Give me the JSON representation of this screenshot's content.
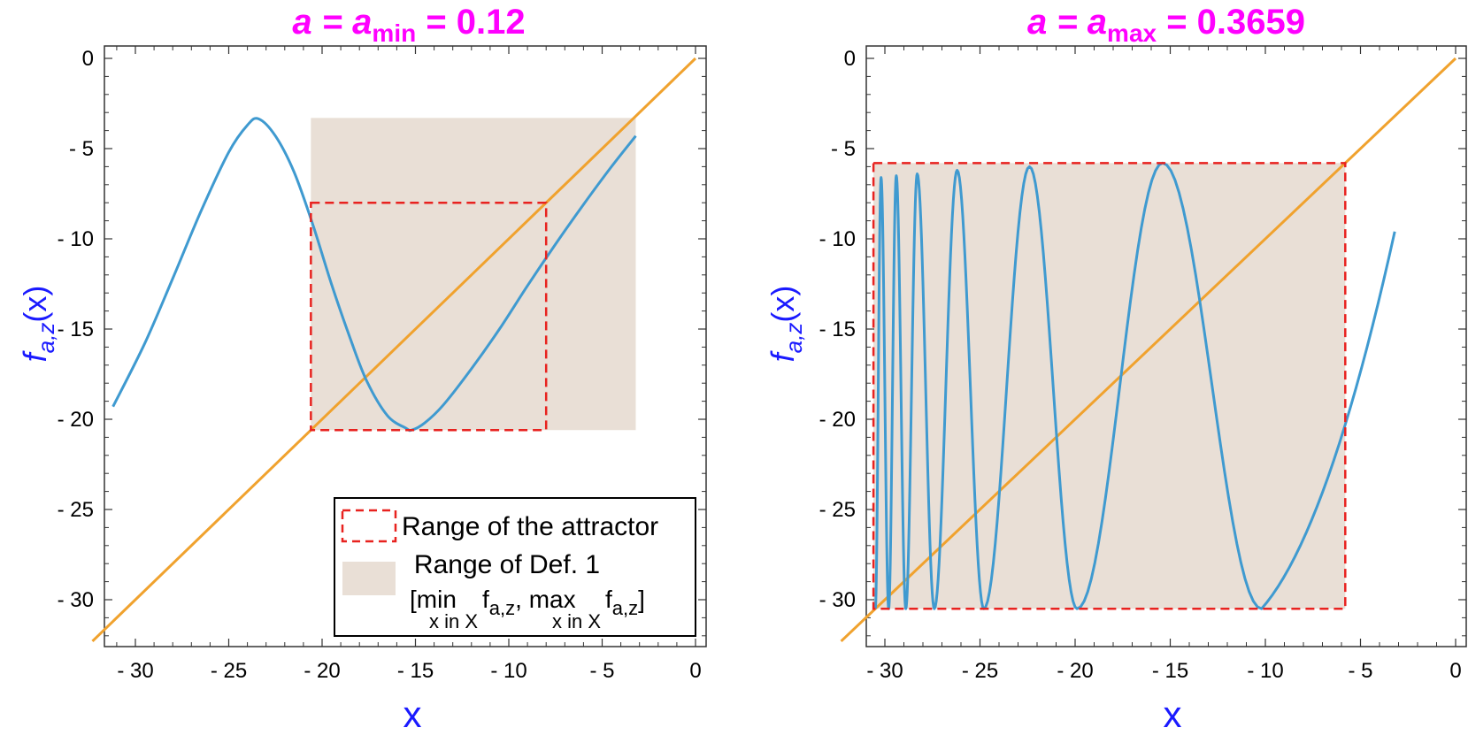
{
  "colors": {
    "title": "#ff00ff",
    "axis_label": "#1a1aff",
    "curve": "#3f9ad0",
    "diagonal": "#f0a22e",
    "attractor_box": "#e8221f",
    "def_region": "#e9dfd6"
  },
  "chart_data": [
    {
      "type": "line",
      "title": {
        "base": "a = a",
        "sub": "min",
        "tail": " = 0.12"
      },
      "xlabel": "x",
      "ylabel": {
        "f": "f",
        "sub": "a,z",
        "arg": "(x)"
      },
      "xlim": [
        -33,
        0.5
      ],
      "ylim": [
        -32.5,
        0.5
      ],
      "xticks": [
        -30,
        -25,
        -20,
        -15,
        -10,
        -5,
        0
      ],
      "xtick_labels": [
        "- 30",
        "- 25",
        "- 20",
        "- 15",
        "- 10",
        "- 5",
        "0"
      ],
      "yticks": [
        0,
        -5,
        -10,
        -15,
        -20,
        -25,
        -30
      ],
      "ytick_labels": [
        "0",
        "- 5",
        "- 10",
        "- 15",
        "- 20",
        "- 25",
        "- 30"
      ],
      "series": [
        {
          "kind": "curve",
          "x": [
            -31.2,
            -29.5,
            -28.0,
            -26.5,
            -25.0,
            -24.0,
            -23.4,
            -22.5,
            -21.5,
            -20.5,
            -19.5,
            -18.5,
            -17.6,
            -16.5,
            -15.5,
            -15.2,
            -14.5,
            -13.5,
            -12.0,
            -10.5,
            -9.0,
            -7.5,
            -6.0,
            -4.5,
            -3.2
          ],
          "y": [
            -19.3,
            -15.8,
            -12.2,
            -8.5,
            -5.2,
            -3.7,
            -3.35,
            -4.3,
            -6.3,
            -9.2,
            -12.5,
            -15.5,
            -17.9,
            -19.8,
            -20.5,
            -20.6,
            -20.2,
            -19.2,
            -17.2,
            -15.0,
            -12.6,
            -10.3,
            -8.1,
            -6.0,
            -4.3
          ]
        },
        {
          "kind": "diagonal",
          "x": [
            -32.3,
            0
          ],
          "y": [
            -32.3,
            0
          ]
        }
      ],
      "def_region": {
        "x": [
          -20.6,
          -3.2
        ],
        "y": [
          -20.6,
          -3.3
        ]
      },
      "attractor_box": {
        "x": [
          -20.6,
          -8.0
        ],
        "y": [
          -20.6,
          -8.0
        ]
      },
      "legend": {
        "position": "bottom-right",
        "entries": [
          {
            "label": "Range of the attractor"
          },
          {
            "label": "Range of Def. 1",
            "formula": {
              "open": "[",
              "min": "min",
              "sub1": "x in X",
              "f1": " f",
              "fsub1": "a,z",
              "comma": ", ",
              "max": "max",
              "sub2": "x in X",
              "f2": " f",
              "fsub2": "a,z",
              "close": "]"
            }
          }
        ]
      }
    },
    {
      "type": "line",
      "title": {
        "base": "a = a",
        "sub": "max",
        "tail": " = 0.3659"
      },
      "xlabel": "x",
      "ylabel": {
        "f": "f",
        "sub": "a,z",
        "arg": "(x)"
      },
      "xlim": [
        -33,
        0.5
      ],
      "ylim": [
        -32.5,
        0.5
      ],
      "xticks": [
        -30,
        -25,
        -20,
        -15,
        -10,
        -5,
        0
      ],
      "xtick_labels": [
        "- 30",
        "- 25",
        "- 20",
        "- 15",
        "- 10",
        "- 5",
        "0"
      ],
      "yticks": [
        0,
        -5,
        -10,
        -15,
        -20,
        -25,
        -30
      ],
      "ytick_labels": [
        "0",
        "- 5",
        "- 10",
        "- 15",
        "- 20",
        "- 25",
        "- 30"
      ],
      "oscillation": {
        "x_range": [
          -30.6,
          -3.2
        ],
        "peaks_x": [
          -30.2,
          -29.4,
          -28.3,
          -26.2,
          -22.4,
          -15.4
        ],
        "peaks_y": [
          -6.6,
          -6.5,
          -6.4,
          -6.2,
          -6.0,
          -5.8
        ],
        "troughs_x": [
          -30.5,
          -29.8,
          -28.9,
          -27.4,
          -24.8,
          -19.9,
          -10.2
        ],
        "trough_y": -30.5,
        "end_y": -9.6
      },
      "series": [
        {
          "kind": "diagonal",
          "x": [
            -32.3,
            0
          ],
          "y": [
            -32.3,
            0
          ]
        }
      ],
      "def_region": {
        "x": [
          -30.6,
          -5.8
        ],
        "y": [
          -30.5,
          -5.8
        ]
      },
      "attractor_box": {
        "x": [
          -30.6,
          -5.8
        ],
        "y": [
          -30.5,
          -5.8
        ]
      }
    }
  ]
}
